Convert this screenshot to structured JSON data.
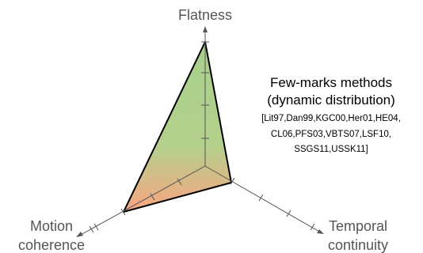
{
  "axes": {
    "top": {
      "label": "Flatness"
    },
    "left": {
      "label_line1": "Motion",
      "label_line2": "coherence"
    },
    "right": {
      "label_line1": "Temporal",
      "label_line2": "continuity"
    }
  },
  "method": {
    "title_line1": "Few-marks methods",
    "title_line2": "(dynamic distribution)",
    "refs_line1": "[Lit97,Dan99,KGC00,Her01,HE04,",
    "refs_line2": "CL06,PFS03,VBTS07,LSF10,",
    "refs_line3": "SSGS11,USSK11]"
  },
  "colors": {
    "axis": "#555555",
    "outline": "#000000",
    "fill_green": "#a9d08e",
    "fill_orange": "#f3a983"
  }
}
